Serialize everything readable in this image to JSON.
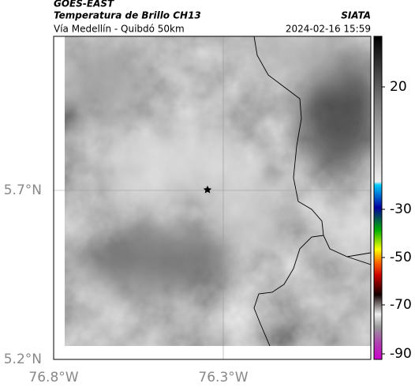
{
  "header": {
    "satellite": "GOES-EAST",
    "product": "Temperatura de Brillo CH13",
    "region": "Vía Medellín - Quibdó 50km",
    "source": "SIATA",
    "timestamp": "2024-02-16 15:59"
  },
  "axes": {
    "lat_labels": [
      "5.7°N",
      "5.2°N"
    ],
    "lon_labels": [
      "76.8°W",
      "76.3°W"
    ]
  },
  "colorbar": {
    "labels": [
      "20",
      "-30",
      "-50",
      "-70",
      "-90"
    ]
  }
}
